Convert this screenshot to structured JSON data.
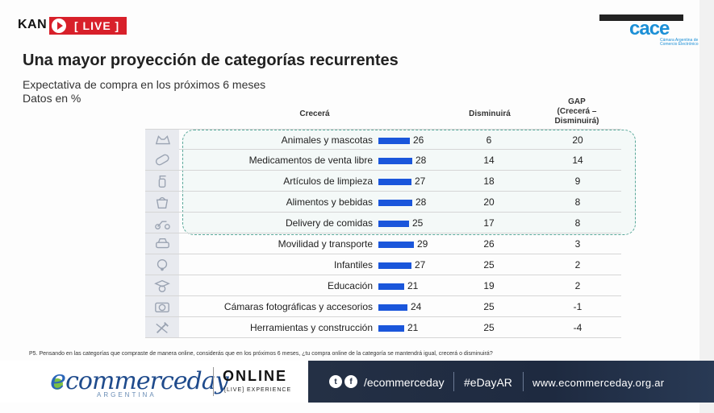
{
  "header": {
    "channel": "KAN",
    "live_label": "[ LIVE ]",
    "brand_logo": "cace",
    "brand_sub": "Cámara Argentina de Comercio Electrónico"
  },
  "slide": {
    "title": "Una mayor proyección de categorías recurrentes",
    "subtitle": "Expectativa de compra en los próximos 6 meses",
    "subtitle2": "Datos en %",
    "col_crecera": "Crecerá",
    "col_disminuira": "Disminuirá",
    "col_gap": "GAP\n(Crecerá –\nDisminuirá)",
    "footnote": "P5. Pensando en las categorías que compraste de manera online, considerás que en los próximos 6 meses, ¿tu compra online de la categoría se mantendrá igual, crecerá o disminuirá?"
  },
  "rows": [
    {
      "category": "Animales y mascotas",
      "crecera": 26,
      "disminuira": "6",
      "gap": "20",
      "icon": "pet-icon"
    },
    {
      "category": "Medicamentos de venta libre",
      "crecera": 28,
      "disminuira": "14",
      "gap": "14",
      "icon": "pill-icon"
    },
    {
      "category": "Artículos de limpieza",
      "crecera": 27,
      "disminuira": "18",
      "gap": "9",
      "icon": "cleaning-spray-icon"
    },
    {
      "category": "Alimentos y bebidas",
      "crecera": 28,
      "disminuira": "20",
      "gap": "8",
      "icon": "grocery-bag-icon"
    },
    {
      "category": "Delivery de comidas",
      "crecera": 25,
      "disminuira": "17",
      "gap": "8",
      "icon": "delivery-scooter-icon"
    },
    {
      "category": "Movilidad y transporte",
      "crecera": 29,
      "disminuira": "26",
      "gap": "3",
      "icon": "car-icon"
    },
    {
      "category": "Infantiles",
      "crecera": 27,
      "disminuira": "25",
      "gap": "2",
      "icon": "baby-icon"
    },
    {
      "category": "Educación",
      "crecera": 21,
      "disminuira": "19",
      "gap": "2",
      "icon": "graduate-icon"
    },
    {
      "category": "Cámaras fotográficas y accesorios",
      "crecera": 24,
      "disminuira": "25",
      "gap": "-1",
      "icon": "camera-icon"
    },
    {
      "category": "Herramientas y construcción",
      "crecera": 21,
      "disminuira": "25",
      "gap": "-4",
      "icon": "tools-icon"
    }
  ],
  "banner": {
    "logo_text": "commerceday",
    "logo_e": "e",
    "country": "ARGENTINA",
    "online": "ONLINE",
    "live_experience": "[LIVE] EXPERIENCE",
    "handle": "/ecommerceday",
    "hashtag": "#eDayAR",
    "url": "www.ecommerceday.org.ar"
  },
  "colors": {
    "bar": "#1a56db",
    "live": "#d8202a",
    "highlight_border": "#5aa89a"
  }
}
